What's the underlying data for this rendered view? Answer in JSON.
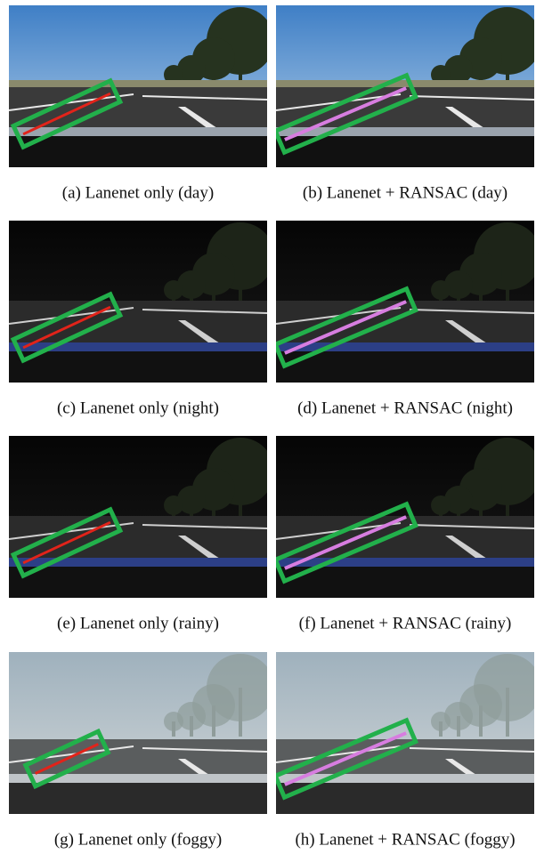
{
  "figure": {
    "panels": [
      {
        "caption": "(a) Lanenet only (day)"
      },
      {
        "caption": "(b) Lanenet + RANSAC (day)"
      },
      {
        "caption": "(c) Lanenet only (night)"
      },
      {
        "caption": "(d) Lanenet + RANSAC (night)"
      },
      {
        "caption": "(e) Lanenet only (rainy)"
      },
      {
        "caption": "(f) Lanenet + RANSAC (rainy)"
      },
      {
        "caption": "(g) Lanenet only (foggy)"
      },
      {
        "caption": "(h) Lanenet + RANSAC (foggy)"
      }
    ]
  }
}
